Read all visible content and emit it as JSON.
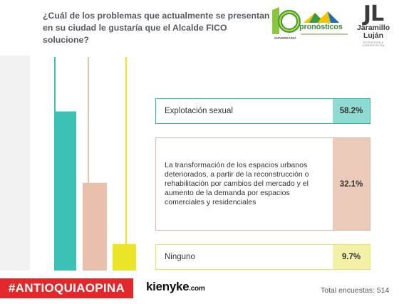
{
  "question": "¿Cuál de los problemas que actualmente se presentan en su ciudad le gustaría que el Alcalde FICO solucione?",
  "logos": {
    "anniversary": {
      "number": "10",
      "text": "ANIVERSARIO"
    },
    "pronosticos": {
      "name": "pronósticos"
    },
    "jaramillo": {
      "initials": "JL",
      "line1": "Jaramillo",
      "line2": "Luján",
      "tagline": "ESTRATEGIA & COMUNICACIÓN"
    }
  },
  "chart_data": {
    "type": "bar",
    "categories": [
      "Explotación sexual",
      "La transformación de los espacios urbanos deteriorados, a partir de la reconstrucción o rehabilitación por cambios del mercado y el aumento de la demanda por espacios comerciales y residenciales",
      "Ninguno"
    ],
    "values": [
      58.2,
      32.1,
      9.7
    ],
    "value_labels": [
      "58.2%",
      "32.1%",
      "9.7%"
    ],
    "colors": [
      "#3cc2b5",
      "#e9c0ac",
      "#ebe52a"
    ],
    "ylim": [
      0,
      100
    ]
  },
  "footer": {
    "hashtag": "#ANTIOQUIAOPINA",
    "brand": "kienyke",
    "brand_suffix": ".com",
    "total": "Total encuestas: 514"
  }
}
